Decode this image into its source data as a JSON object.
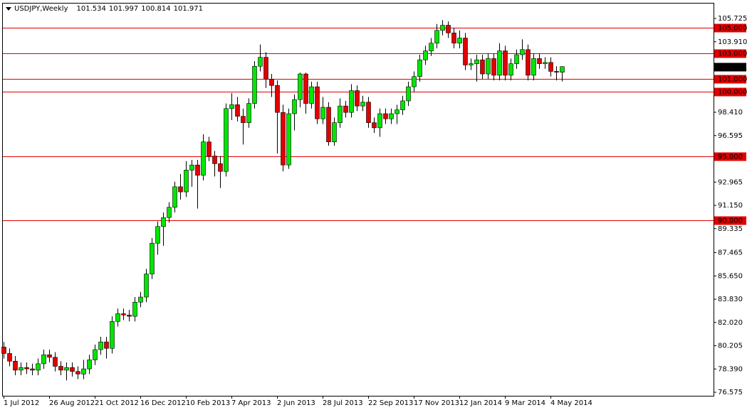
{
  "chart_data": {
    "type": "candlestick",
    "title": "USDJPY,Weekly",
    "header_values": [
      101.534,
      101.997,
      100.814,
      101.971
    ],
    "categories": [
      "1 Jul 2012",
      null,
      null,
      null,
      null,
      null,
      null,
      null,
      "26 Aug 2012",
      null,
      null,
      null,
      null,
      null,
      null,
      null,
      "21 Oct 2012",
      null,
      null,
      null,
      null,
      null,
      null,
      null,
      "16 Dec 2012",
      null,
      null,
      null,
      null,
      null,
      null,
      null,
      "10 Feb 2013",
      null,
      null,
      null,
      null,
      null,
      null,
      null,
      "7 Apr 2013",
      null,
      null,
      null,
      null,
      null,
      null,
      null,
      "2 Jun 2013",
      null,
      null,
      null,
      null,
      null,
      null,
      null,
      "28 Jul 2013",
      null,
      null,
      null,
      null,
      null,
      null,
      null,
      "22 Sep 2013",
      null,
      null,
      null,
      null,
      null,
      null,
      null,
      "17 Nov 2013",
      null,
      null,
      null,
      null,
      null,
      null,
      null,
      "12 Jan 2014",
      null,
      null,
      null,
      null,
      null,
      null,
      null,
      "9 Mar 2014",
      null,
      null,
      null,
      null,
      null,
      null,
      null,
      "4 May 2014",
      null,
      null
    ],
    "open": [
      80.1,
      79.6,
      79.0,
      78.3,
      78.5,
      78.4,
      78.3,
      78.8,
      79.5,
      79.3,
      78.6,
      78.3,
      78.5,
      78.2,
      78.0,
      78.4,
      79.1,
      79.9,
      80.5,
      80.0,
      82.1,
      82.7,
      82.6,
      82.5,
      83.6,
      84.0,
      85.8,
      88.2,
      89.5,
      90.2,
      91.0,
      92.6,
      92.2,
      93.9,
      94.3,
      93.5,
      96.1,
      95.0,
      94.4,
      93.8,
      98.7,
      99.0,
      98.1,
      97.6,
      99.1,
      102.0,
      102.7,
      101.0,
      100.5,
      98.4,
      94.3,
      98.3,
      99.4,
      101.4,
      99.1,
      100.4,
      97.9,
      98.8,
      96.1,
      97.6,
      98.9,
      98.4,
      100.1,
      98.9,
      99.2,
      97.6,
      97.2,
      98.3,
      97.9,
      98.3,
      98.6,
      99.3,
      100.4,
      101.2,
      102.5,
      103.2,
      103.8,
      104.8,
      105.2,
      104.6,
      103.8,
      104.2,
      102.1,
      102.2,
      102.5,
      101.4,
      102.6,
      101.3,
      103.2,
      101.3,
      102.2,
      102.9,
      103.3,
      101.3,
      102.6,
      102.2,
      102.3,
      101.6,
      101.534
    ],
    "high": [
      80.5,
      80.0,
      79.4,
      78.9,
      78.9,
      78.8,
      79.2,
      79.9,
      79.9,
      79.7,
      79.0,
      78.9,
      78.9,
      78.6,
      79.1,
      79.5,
      80.3,
      80.9,
      80.9,
      82.5,
      83.1,
      83.1,
      83.0,
      84.0,
      84.4,
      86.2,
      88.6,
      89.9,
      90.6,
      91.4,
      93.0,
      93.6,
      94.6,
      94.7,
      94.7,
      96.7,
      96.5,
      95.4,
      95.0,
      99.1,
      99.9,
      99.6,
      98.7,
      99.5,
      102.4,
      103.7,
      103.1,
      101.4,
      100.9,
      99.0,
      98.7,
      99.8,
      101.5,
      101.5,
      100.8,
      100.8,
      99.6,
      99.2,
      98.0,
      99.5,
      99.3,
      100.6,
      100.5,
      99.7,
      99.6,
      98.0,
      98.7,
      98.7,
      98.7,
      99.0,
      99.7,
      100.8,
      101.6,
      102.9,
      103.6,
      104.2,
      105.3,
      105.6,
      105.5,
      105.0,
      104.8,
      104.6,
      102.6,
      102.9,
      102.9,
      103.0,
      103.0,
      103.8,
      103.6,
      102.6,
      103.3,
      104.1,
      103.7,
      103.0,
      103.0,
      102.7,
      102.7,
      102.0,
      101.997
    ],
    "low": [
      79.2,
      78.6,
      77.9,
      77.9,
      78.0,
      77.9,
      77.9,
      78.4,
      78.9,
      78.2,
      77.9,
      77.5,
      77.8,
      77.6,
      77.6,
      78.0,
      78.7,
      79.5,
      79.2,
      79.6,
      81.7,
      82.2,
      82.1,
      82.1,
      83.2,
      83.6,
      85.4,
      87.3,
      88.0,
      89.8,
      90.6,
      91.6,
      91.8,
      92.6,
      90.9,
      93.1,
      94.6,
      93.4,
      92.5,
      93.4,
      97.8,
      97.7,
      95.9,
      97.2,
      98.7,
      101.6,
      100.3,
      99.6,
      95.2,
      93.8,
      94.0,
      97.0,
      98.8,
      98.3,
      98.7,
      97.5,
      97.5,
      95.8,
      95.8,
      97.2,
      98.0,
      98.0,
      98.5,
      98.5,
      97.2,
      96.8,
      96.5,
      97.5,
      97.5,
      97.5,
      98.2,
      98.9,
      100.0,
      100.8,
      102.1,
      102.8,
      103.4,
      104.4,
      104.2,
      103.4,
      103.4,
      101.7,
      101.7,
      100.8,
      101.0,
      101.0,
      100.9,
      100.9,
      100.9,
      100.9,
      101.8,
      102.5,
      100.9,
      100.9,
      101.8,
      101.8,
      101.2,
      100.9,
      100.814
    ],
    "close": [
      79.6,
      79.0,
      78.3,
      78.5,
      78.4,
      78.3,
      78.8,
      79.5,
      79.3,
      78.6,
      78.3,
      78.5,
      78.2,
      78.0,
      78.4,
      79.1,
      79.9,
      80.5,
      80.0,
      82.1,
      82.7,
      82.6,
      82.5,
      83.6,
      84.0,
      85.8,
      88.2,
      89.5,
      90.2,
      91.0,
      92.6,
      92.2,
      93.9,
      94.3,
      93.5,
      96.1,
      95.0,
      94.4,
      93.8,
      98.7,
      99.0,
      98.1,
      97.6,
      99.1,
      102.0,
      102.7,
      101.0,
      100.5,
      98.4,
      94.3,
      98.3,
      99.4,
      101.4,
      99.1,
      100.4,
      97.9,
      98.8,
      96.1,
      97.6,
      98.9,
      98.4,
      100.1,
      98.9,
      99.2,
      97.6,
      97.2,
      98.3,
      97.9,
      98.3,
      98.6,
      99.3,
      100.4,
      101.2,
      102.5,
      103.2,
      103.8,
      104.8,
      105.2,
      104.6,
      103.8,
      104.2,
      102.1,
      102.2,
      102.5,
      101.4,
      102.6,
      101.3,
      103.2,
      101.3,
      102.2,
      102.9,
      103.3,
      101.3,
      102.6,
      102.2,
      102.3,
      101.6,
      101.534,
      101.971
    ],
    "up_color": "#00e600",
    "down_color": "#e00000",
    "level_color": "#e00000",
    "levels": [
      {
        "value": 105,
        "label": "105.000"
      },
      {
        "value": 103,
        "label": "103.000"
      },
      {
        "value": 101,
        "label": "101.000"
      },
      {
        "value": 100,
        "label": "100.000"
      },
      {
        "value": 95,
        "label": "95.000"
      },
      {
        "value": 90,
        "label": "90.000"
      }
    ],
    "ylim": [
      76.3,
      106.89
    ],
    "yticks": [
      {
        "value": 105.725,
        "label": "105.725"
      },
      {
        "value": 103.91,
        "label": "103.910"
      },
      {
        "value": 98.41,
        "label": "98.410"
      },
      {
        "value": 96.595,
        "label": "96.595"
      },
      {
        "value": 92.965,
        "label": "92.965"
      },
      {
        "value": 91.15,
        "label": "91.150"
      },
      {
        "value": 89.335,
        "label": "89.335"
      },
      {
        "value": 87.465,
        "label": "87.465"
      },
      {
        "value": 85.65,
        "label": "85.650"
      },
      {
        "value": 83.83,
        "label": "83.830"
      },
      {
        "value": 82.02,
        "label": "82.020"
      },
      {
        "value": 80.205,
        "label": "80.205"
      },
      {
        "value": 78.39,
        "label": "78.390"
      },
      {
        "value": 76.575,
        "label": "76.575"
      }
    ]
  }
}
